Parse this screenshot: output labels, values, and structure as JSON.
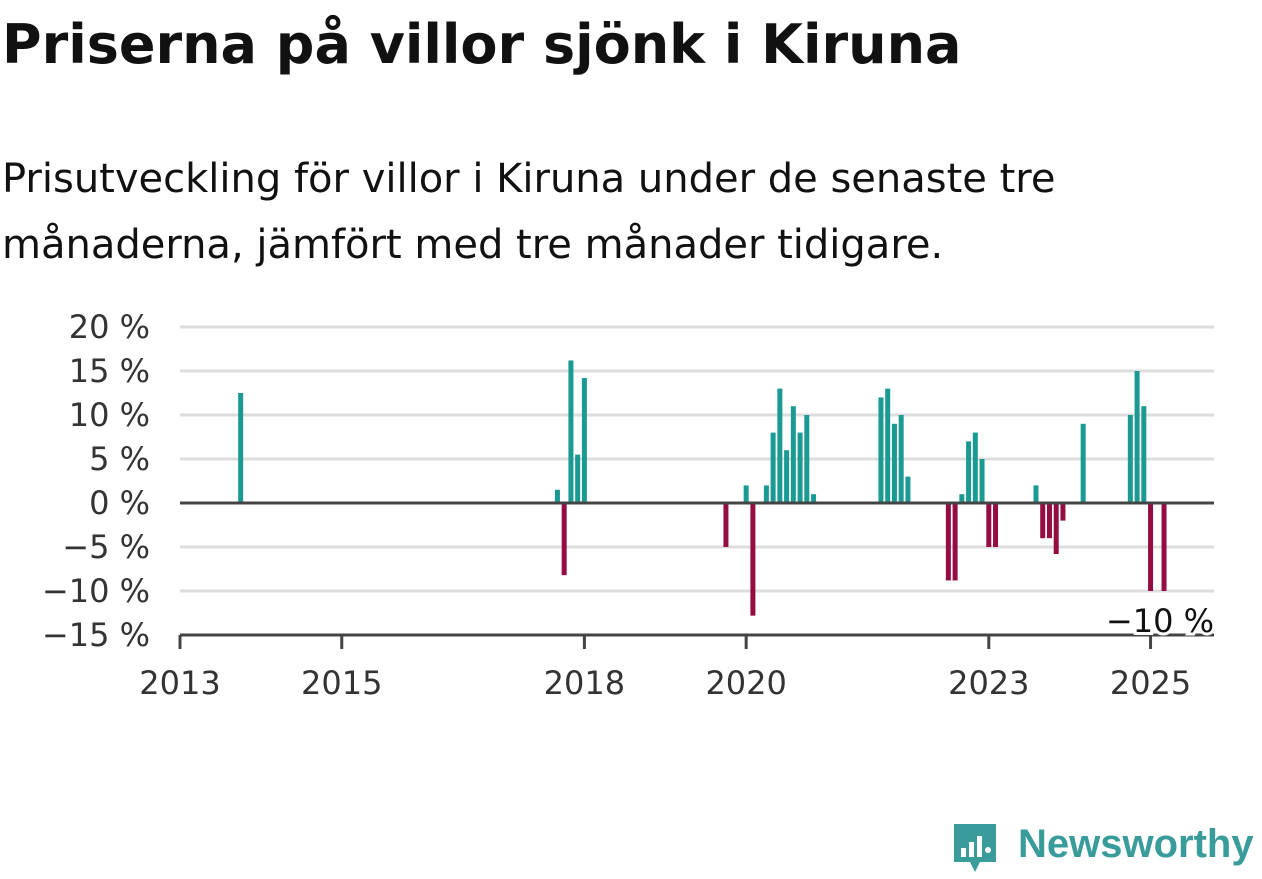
{
  "title": "Priserna på villor sjönk i Kiruna",
  "subtitle": "Prisutveckling för villor i Kiruna under de senaste tre månaderna, jämfört med tre månader tidigare.",
  "colors": {
    "positive": "#1a9a92",
    "negative": "#940c42",
    "grid": "#dddddd",
    "axis": "#444444",
    "brand": "#3a9c9a"
  },
  "brand": {
    "name": "Newsworthy",
    "icon": "newsworthy-logo-icon"
  },
  "chart_data": {
    "type": "bar",
    "title": "Priserna på villor sjönk i Kiruna",
    "subtitle": "Prisutveckling för villor i Kiruna under de senaste tre månaderna, jämfört med tre månader tidigare.",
    "xlabel": "",
    "ylabel": "",
    "unit": "%",
    "xlim": [
      "2013-01",
      "2025-09"
    ],
    "ylim": [
      -15,
      20
    ],
    "y_ticks": [
      20,
      15,
      10,
      5,
      0,
      -5,
      -10,
      -15
    ],
    "y_tick_labels": [
      "20 %",
      "15 %",
      "10 %",
      "5 %",
      "0 %",
      "−5 %",
      "−10 %",
      "−15 %"
    ],
    "x_ticks": [
      "2013",
      "2015",
      "2018",
      "2020",
      "2023",
      "2025"
    ],
    "grid": true,
    "legend": "none",
    "annotation": {
      "label": "−10 %",
      "period": "2025-03",
      "value": -10
    },
    "x": [
      "2013-10",
      "2017-09",
      "2017-10",
      "2017-11",
      "2017-12",
      "2018-01",
      "2019-10",
      "2020-01",
      "2020-02",
      "2020-04",
      "2020-05",
      "2020-06",
      "2020-07",
      "2020-08",
      "2020-09",
      "2020-10",
      "2020-11",
      "2021-09",
      "2021-10",
      "2021-11",
      "2021-12",
      "2022-01",
      "2022-07",
      "2022-08",
      "2022-09",
      "2022-10",
      "2022-11",
      "2022-12",
      "2023-01",
      "2023-02",
      "2023-08",
      "2023-09",
      "2023-10",
      "2023-11",
      "2023-12",
      "2024-03",
      "2024-10",
      "2024-11",
      "2024-12",
      "2025-01",
      "2025-03"
    ],
    "values": [
      12.5,
      1.5,
      -8.2,
      16.2,
      5.5,
      14.2,
      -5,
      2,
      -12.8,
      2,
      8,
      13,
      6,
      11,
      8,
      10,
      1,
      12,
      13,
      9,
      10,
      3,
      -8.8,
      -8.8,
      1,
      7,
      8,
      5,
      -5,
      -5,
      2,
      -4,
      -4,
      -5.8,
      -2,
      9,
      10,
      15,
      11,
      -10,
      -10
    ]
  }
}
